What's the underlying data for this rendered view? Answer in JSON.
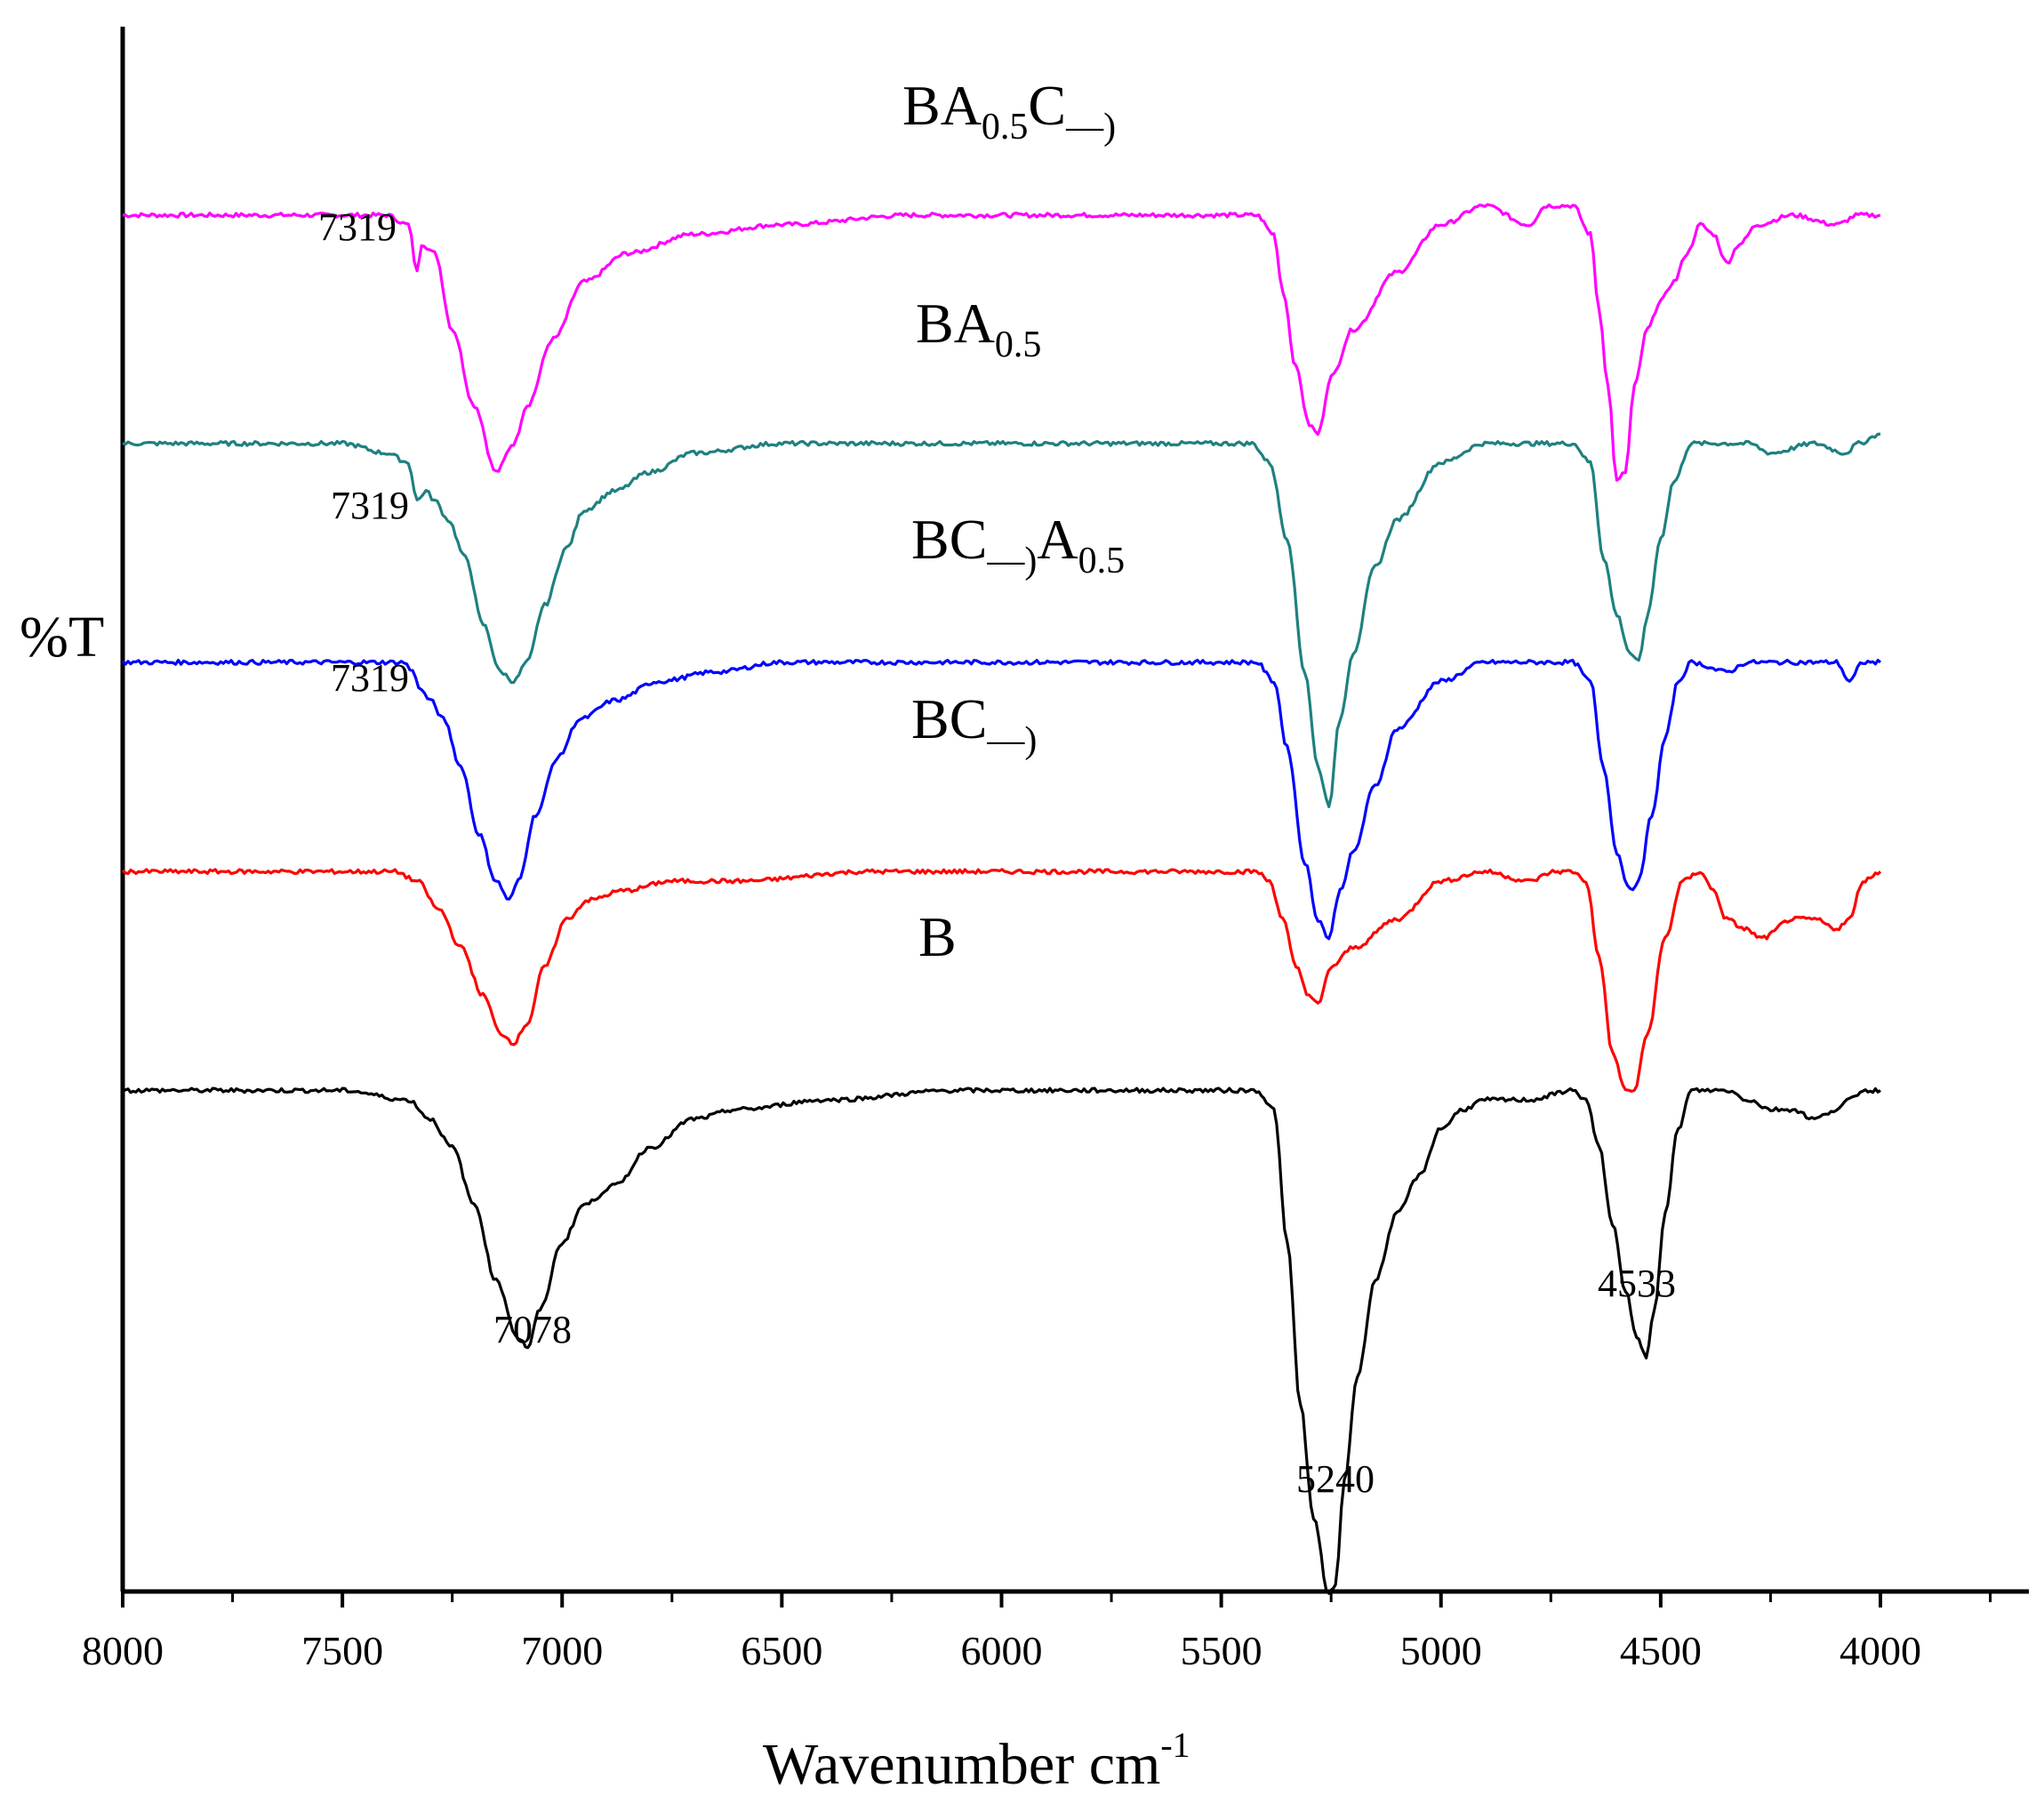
{
  "chart_data": {
    "type": "line",
    "title": "",
    "xlabel": "Wavenumber cm",
    "xlabel_sup": "-1",
    "ylabel": "%T",
    "xlim": [
      8000,
      3700
    ],
    "x_reversed": true,
    "x_ticks": [
      8000,
      7500,
      7000,
      6500,
      6000,
      5500,
      5000,
      4500,
      4000
    ],
    "x_tick_labels": [
      "8000",
      "7500",
      "7000",
      "6500",
      "6000",
      "5500",
      "5000",
      "4500",
      "4000"
    ],
    "y_units": "relative (stacked, arbitrary offset)",
    "grid": false,
    "legend": "inline labels above each trace",
    "series": [
      {
        "name": "BA0.5C",
        "label": {
          "main1": "BA",
          "sub1": "0.5",
          "main2": "C",
          "sub2": "‒‒)"
        },
        "color": "#ff00ff",
        "baseline": 100,
        "points": [
          [
            8000,
            100
          ],
          [
            7400,
            100
          ],
          [
            7350,
            99
          ],
          [
            7330,
            94
          ],
          [
            7320,
            97
          ],
          [
            7290,
            96
          ],
          [
            7250,
            88
          ],
          [
            7200,
            80
          ],
          [
            7150,
            73
          ],
          [
            7110,
            76
          ],
          [
            7080,
            80
          ],
          [
            7020,
            87
          ],
          [
            6950,
            93
          ],
          [
            6850,
            96
          ],
          [
            6700,
            98
          ],
          [
            6500,
            99
          ],
          [
            6200,
            100
          ],
          [
            5800,
            100
          ],
          [
            5420,
            100
          ],
          [
            5380,
            98
          ],
          [
            5360,
            92
          ],
          [
            5330,
            84
          ],
          [
            5300,
            78
          ],
          [
            5280,
            77
          ],
          [
            5250,
            83
          ],
          [
            5200,
            88
          ],
          [
            5100,
            94
          ],
          [
            5000,
            99
          ],
          [
            4900,
            101
          ],
          [
            4800,
            99
          ],
          [
            4760,
            101
          ],
          [
            4700,
            101
          ],
          [
            4660,
            98
          ],
          [
            4640,
            90
          ],
          [
            4620,
            82
          ],
          [
            4600,
            72
          ],
          [
            4580,
            73
          ],
          [
            4560,
            82
          ],
          [
            4530,
            88
          ],
          [
            4500,
            91
          ],
          [
            4470,
            93
          ],
          [
            4440,
            96
          ],
          [
            4410,
            99
          ],
          [
            4380,
            98
          ],
          [
            4350,
            95
          ],
          [
            4320,
            97
          ],
          [
            4280,
            99
          ],
          [
            4200,
            100
          ],
          [
            4100,
            99
          ],
          [
            4050,
            100
          ],
          [
            4000,
            100
          ]
        ],
        "peak_labels": [
          {
            "text": "7319"
          }
        ]
      },
      {
        "name": "BA0.5",
        "label": {
          "main1": "BA",
          "sub1": "0.5"
        },
        "color": "#1f8080",
        "baseline": 76,
        "points": [
          [
            8000,
            76
          ],
          [
            7500,
            76
          ],
          [
            7400,
            75
          ],
          [
            7350,
            74
          ],
          [
            7330,
            70
          ],
          [
            7310,
            71
          ],
          [
            7290,
            70
          ],
          [
            7260,
            68
          ],
          [
            7220,
            64
          ],
          [
            7180,
            57
          ],
          [
            7140,
            52
          ],
          [
            7110,
            51
          ],
          [
            7080,
            53
          ],
          [
            7040,
            59
          ],
          [
            6990,
            65
          ],
          [
            6950,
            69
          ],
          [
            6880,
            71
          ],
          [
            6800,
            73
          ],
          [
            6700,
            75
          ],
          [
            6500,
            76
          ],
          [
            6200,
            76
          ],
          [
            5800,
            76
          ],
          [
            5500,
            76
          ],
          [
            5430,
            76
          ],
          [
            5390,
            74
          ],
          [
            5350,
            66
          ],
          [
            5310,
            52
          ],
          [
            5280,
            42
          ],
          [
            5255,
            38
          ],
          [
            5230,
            47
          ],
          [
            5200,
            54
          ],
          [
            5150,
            63
          ],
          [
            5100,
            68
          ],
          [
            5000,
            74
          ],
          [
            4900,
            76
          ],
          [
            4800,
            76
          ],
          [
            4700,
            76
          ],
          [
            4660,
            74
          ],
          [
            4630,
            64
          ],
          [
            4600,
            58
          ],
          [
            4570,
            54
          ],
          [
            4550,
            53
          ],
          [
            4530,
            58
          ],
          [
            4500,
            66
          ],
          [
            4470,
            72
          ],
          [
            4430,
            76
          ],
          [
            4300,
            76
          ],
          [
            4250,
            75
          ],
          [
            4150,
            76
          ],
          [
            4080,
            75
          ],
          [
            4050,
            76
          ],
          [
            4000,
            77
          ]
        ],
        "peak_labels": [
          {
            "text": "7319"
          }
        ]
      },
      {
        "name": "BC‒‒)A0.5",
        "label": {
          "main1": "BC",
          "sub1": "‒‒)",
          "main2": "A",
          "sub2": "0.5"
        },
        "color": "#0000ff",
        "baseline": 53,
        "points": [
          [
            8000,
            53
          ],
          [
            7500,
            53
          ],
          [
            7360,
            53
          ],
          [
            7340,
            52
          ],
          [
            7320,
            50
          ],
          [
            7300,
            49
          ],
          [
            7270,
            47
          ],
          [
            7230,
            42
          ],
          [
            7190,
            35
          ],
          [
            7150,
            30
          ],
          [
            7120,
            28
          ],
          [
            7100,
            30
          ],
          [
            7060,
            37
          ],
          [
            7010,
            43
          ],
          [
            6960,
            47
          ],
          [
            6880,
            49
          ],
          [
            6780,
            51
          ],
          [
            6650,
            52
          ],
          [
            6500,
            53
          ],
          [
            6200,
            53
          ],
          [
            5800,
            53
          ],
          [
            5500,
            53
          ],
          [
            5420,
            53
          ],
          [
            5380,
            51
          ],
          [
            5350,
            44
          ],
          [
            5310,
            32
          ],
          [
            5280,
            26
          ],
          [
            5255,
            24
          ],
          [
            5230,
            29
          ],
          [
            5200,
            33
          ],
          [
            5150,
            40
          ],
          [
            5100,
            46
          ],
          [
            5000,
            51
          ],
          [
            4900,
            53
          ],
          [
            4800,
            53
          ],
          [
            4700,
            53
          ],
          [
            4660,
            51
          ],
          [
            4630,
            42
          ],
          [
            4600,
            33
          ],
          [
            4570,
            29
          ],
          [
            4550,
            30
          ],
          [
            4520,
            37
          ],
          [
            4490,
            45
          ],
          [
            4460,
            51
          ],
          [
            4430,
            53
          ],
          [
            4350,
            52
          ],
          [
            4300,
            53
          ],
          [
            4200,
            53
          ],
          [
            4100,
            53
          ],
          [
            4070,
            51
          ],
          [
            4040,
            53
          ],
          [
            4000,
            53
          ]
        ],
        "peak_labels": [
          {
            "text": "7319"
          }
        ]
      },
      {
        "name": "BC‒‒)",
        "label": {
          "main1": "BC",
          "sub1": "‒‒)"
        },
        "color": "#ff0000",
        "baseline": 31,
        "points": [
          [
            8000,
            31
          ],
          [
            7500,
            31
          ],
          [
            7380,
            31
          ],
          [
            7330,
            30
          ],
          [
            7280,
            27
          ],
          [
            7230,
            23
          ],
          [
            7180,
            18
          ],
          [
            7140,
            14
          ],
          [
            7110,
            13
          ],
          [
            7080,
            15
          ],
          [
            7040,
            21
          ],
          [
            6990,
            26
          ],
          [
            6940,
            28
          ],
          [
            6860,
            29
          ],
          [
            6750,
            30
          ],
          [
            6600,
            30
          ],
          [
            6300,
            31
          ],
          [
            5800,
            31
          ],
          [
            5420,
            31
          ],
          [
            5390,
            30
          ],
          [
            5360,
            26
          ],
          [
            5330,
            21
          ],
          [
            5300,
            18
          ],
          [
            5280,
            17
          ],
          [
            5250,
            21
          ],
          [
            5200,
            23
          ],
          [
            5100,
            26
          ],
          [
            5000,
            30
          ],
          [
            4900,
            31
          ],
          [
            4800,
            30
          ],
          [
            4740,
            31
          ],
          [
            4700,
            31
          ],
          [
            4670,
            30
          ],
          [
            4640,
            22
          ],
          [
            4610,
            12
          ],
          [
            4580,
            8
          ],
          [
            4560,
            8
          ],
          [
            4530,
            14
          ],
          [
            4490,
            24
          ],
          [
            4450,
            30
          ],
          [
            4410,
            31
          ],
          [
            4380,
            29
          ],
          [
            4350,
            26
          ],
          [
            4310,
            25
          ],
          [
            4270,
            24
          ],
          [
            4200,
            26
          ],
          [
            4150,
            26
          ],
          [
            4100,
            25
          ],
          [
            4070,
            26
          ],
          [
            4040,
            30
          ],
          [
            4000,
            31
          ]
        ],
        "peak_labels": []
      },
      {
        "name": "B",
        "label": {
          "main1": "B"
        },
        "color": "#000000",
        "baseline": 8,
        "points": [
          [
            8000,
            8
          ],
          [
            7500,
            8
          ],
          [
            7350,
            7
          ],
          [
            7300,
            5
          ],
          [
            7250,
            2
          ],
          [
            7200,
            -4
          ],
          [
            7150,
            -12
          ],
          [
            7100,
            -18
          ],
          [
            7078,
            -19
          ],
          [
            7050,
            -15
          ],
          [
            7000,
            -8
          ],
          [
            6950,
            -4
          ],
          [
            6880,
            -2
          ],
          [
            6800,
            2
          ],
          [
            6700,
            5
          ],
          [
            6600,
            6
          ],
          [
            6400,
            7
          ],
          [
            6100,
            8
          ],
          [
            5800,
            8
          ],
          [
            5500,
            8
          ],
          [
            5420,
            8
          ],
          [
            5380,
            6
          ],
          [
            5350,
            -8
          ],
          [
            5320,
            -25
          ],
          [
            5290,
            -37
          ],
          [
            5255,
            -45
          ],
          [
            5240,
            -44
          ],
          [
            5220,
            -33
          ],
          [
            5190,
            -22
          ],
          [
            5150,
            -12
          ],
          [
            5100,
            -5
          ],
          [
            5050,
            -1
          ],
          [
            5000,
            4
          ],
          [
            4950,
            6
          ],
          [
            4900,
            7
          ],
          [
            4800,
            7
          ],
          [
            4700,
            8
          ],
          [
            4670,
            7
          ],
          [
            4640,
            2
          ],
          [
            4610,
            -6
          ],
          [
            4580,
            -13
          ],
          [
            4555,
            -18
          ],
          [
            4533,
            -20
          ],
          [
            4515,
            -15
          ],
          [
            4490,
            -5
          ],
          [
            4460,
            4
          ],
          [
            4430,
            8
          ],
          [
            4350,
            8
          ],
          [
            4300,
            7
          ],
          [
            4250,
            6
          ],
          [
            4200,
            6
          ],
          [
            4150,
            5
          ],
          [
            4100,
            6
          ],
          [
            4070,
            7
          ],
          [
            4040,
            8
          ],
          [
            4000,
            8
          ]
        ],
        "peak_labels": [
          {
            "text": "7078"
          },
          {
            "text": "5240"
          },
          {
            "text": "4533"
          }
        ]
      }
    ]
  }
}
